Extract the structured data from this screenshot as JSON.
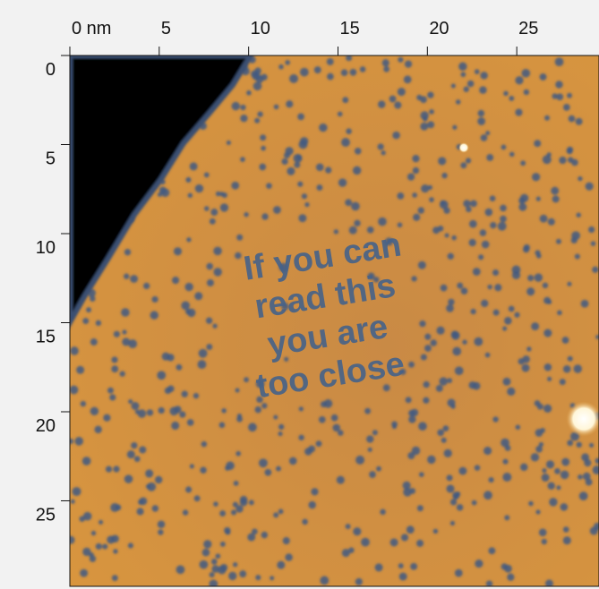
{
  "chart_data": {
    "type": "image",
    "xlim": [
      0,
      29.6
    ],
    "ylim": [
      0,
      29.8
    ],
    "xticks": [
      {
        "value": 0,
        "label": "0 nm"
      },
      5,
      10,
      15,
      20,
      25
    ],
    "yticks": [
      0,
      5,
      10,
      15,
      20,
      25
    ],
    "annotation": [
      "If you can",
      "read this",
      "you are",
      "too close"
    ]
  }
}
